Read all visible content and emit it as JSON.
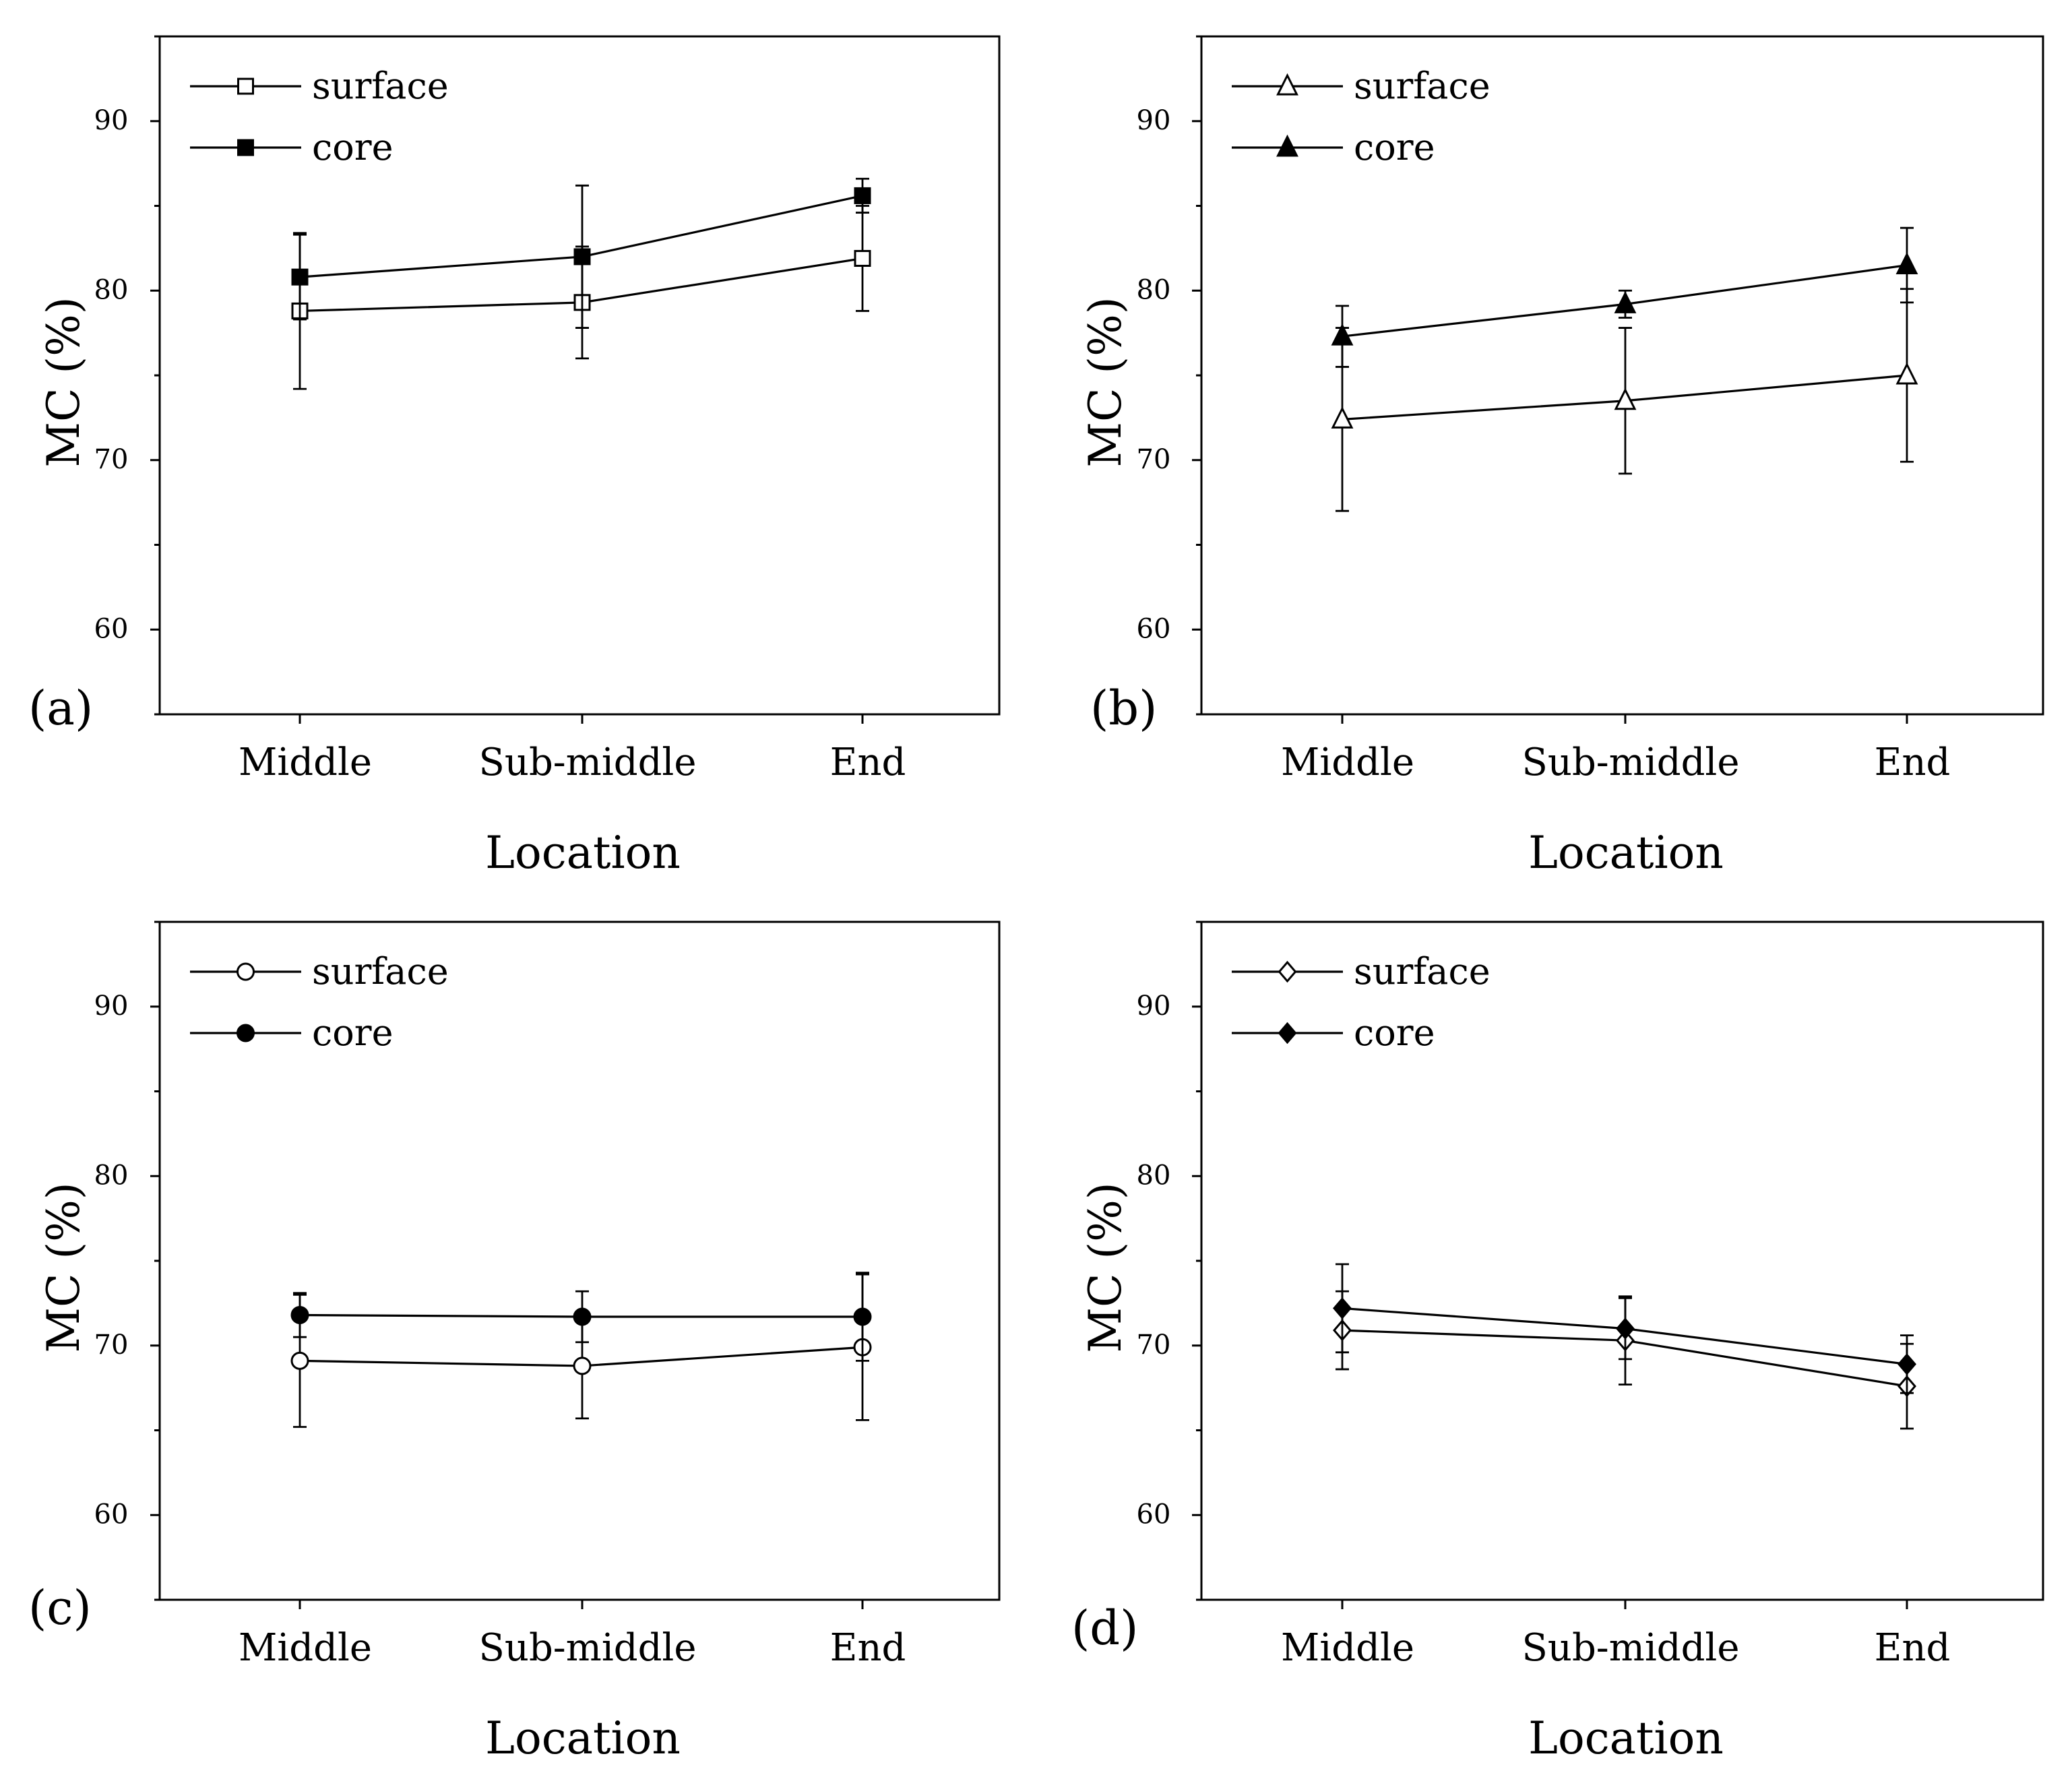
{
  "chart_data": [
    {
      "type": "line",
      "panel_label": "(a)",
      "categories": [
        "Middle",
        "Sub-middle",
        "End"
      ],
      "xlabel": "Location",
      "ylabel": "MC (%)",
      "ylim": [
        55,
        95
      ],
      "yticks": [
        60,
        70,
        80,
        90
      ],
      "marker": "square",
      "legend_position": "top-left",
      "series": [
        {
          "name": "surface",
          "filled": false,
          "values": [
            78.8,
            79.3,
            81.9
          ],
          "errors": [
            4.6,
            3.3,
            3.1
          ]
        },
        {
          "name": "core",
          "filled": true,
          "values": [
            80.8,
            82.0,
            85.6
          ],
          "errors": [
            2.5,
            4.2,
            1.0
          ]
        }
      ]
    },
    {
      "type": "line",
      "panel_label": "(b)",
      "categories": [
        "Middle",
        "Sub-middle",
        "End"
      ],
      "xlabel": "Location",
      "ylabel": "MC (%)",
      "ylim": [
        55,
        95
      ],
      "yticks": [
        60,
        70,
        80,
        90
      ],
      "marker": "triangle",
      "legend_position": "top-left",
      "series": [
        {
          "name": "surface",
          "filled": false,
          "values": [
            72.4,
            73.5,
            75.0
          ],
          "errors": [
            5.4,
            4.3,
            5.1
          ]
        },
        {
          "name": "core",
          "filled": true,
          "values": [
            77.3,
            79.2,
            81.5
          ],
          "errors": [
            1.8,
            0.8,
            2.2
          ]
        }
      ]
    },
    {
      "type": "line",
      "panel_label": "(c)",
      "categories": [
        "Middle",
        "Sub-middle",
        "End"
      ],
      "xlabel": "Location",
      "ylabel": "MC (%)",
      "ylim": [
        55,
        95
      ],
      "yticks": [
        60,
        70,
        80,
        90
      ],
      "marker": "circle",
      "legend_position": "top-left",
      "series": [
        {
          "name": "surface",
          "filled": false,
          "values": [
            69.1,
            68.8,
            69.9
          ],
          "errors": [
            3.9,
            3.1,
            4.3
          ]
        },
        {
          "name": "core",
          "filled": true,
          "values": [
            71.8,
            71.7,
            71.7
          ],
          "errors": [
            1.3,
            1.5,
            2.6
          ]
        }
      ]
    },
    {
      "type": "line",
      "panel_label": "(d)",
      "categories": [
        "Middle",
        "Sub-middle",
        "End"
      ],
      "xlabel": "Location",
      "ylabel": "MC (%)",
      "ylim": [
        55,
        95
      ],
      "yticks": [
        60,
        70,
        80,
        90
      ],
      "marker": "diamond",
      "legend_position": "top-left",
      "series": [
        {
          "name": "surface",
          "filled": false,
          "values": [
            70.9,
            70.3,
            67.6
          ],
          "errors": [
            2.3,
            2.6,
            2.5
          ]
        },
        {
          "name": "core",
          "filled": true,
          "values": [
            72.2,
            71.0,
            68.9
          ],
          "errors": [
            2.6,
            1.8,
            1.7
          ]
        }
      ]
    }
  ]
}
